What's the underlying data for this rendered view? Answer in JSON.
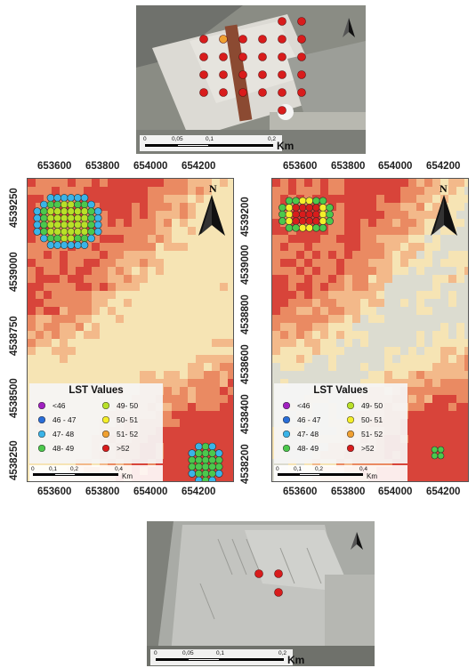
{
  "x_ticks": [
    "653600",
    "653800",
    "654000",
    "654200"
  ],
  "y_ticks_left": [
    "4539250",
    "4539000",
    "4538750",
    "4538500",
    "4538250"
  ],
  "y_ticks_right": [
    "4539200",
    "4539000",
    "4538800",
    "4538600",
    "4538400",
    "4538200"
  ],
  "legend": {
    "title": "LST Values",
    "items": [
      {
        "label": "<46",
        "color": "#a020c0"
      },
      {
        "label": "49- 50",
        "color": "#b8e028"
      },
      {
        "label": "46 - 47",
        "color": "#2a6ed8"
      },
      {
        "label": "50- 51",
        "color": "#f4ee2a"
      },
      {
        "label": "47- 48",
        "color": "#3ab4e8"
      },
      {
        "label": "51- 52",
        "color": "#f0a030"
      },
      {
        "label": "48- 49",
        "color": "#4cc84c"
      },
      {
        "label": ">52",
        "color": "#d81c1c"
      }
    ]
  },
  "map_scalebar": {
    "labels": [
      "0",
      "0,1",
      "0,2",
      "0,4"
    ],
    "unit": "Km"
  },
  "photo_scalebar": {
    "labels": [
      "0",
      "0,05",
      "0,1",
      "0,2"
    ],
    "unit": "Km"
  },
  "north_label": "N",
  "colors": {
    "hot": "#d8443a",
    "warm": "#ea8a62",
    "mild": "#f3b98a",
    "cool": "#f6e4b4",
    "cold": "#dcdcd0",
    "marker": "#d81c1c"
  }
}
